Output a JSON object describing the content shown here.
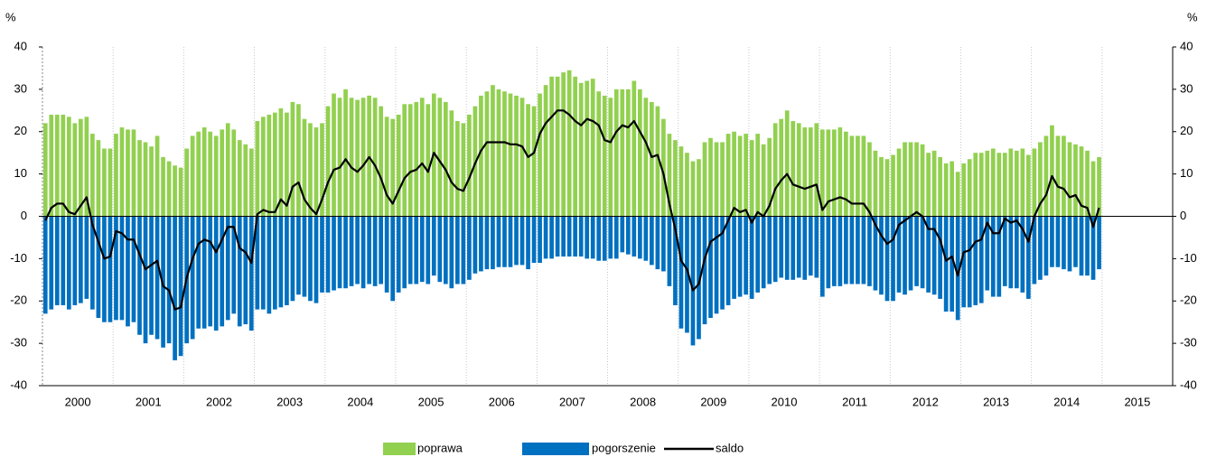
{
  "chart_data": {
    "type": "bar",
    "ylabel": "%",
    "y2label": "%",
    "years": [
      2000,
      2001,
      2002,
      2003,
      2004,
      2005,
      2006,
      2007,
      2008,
      2009,
      2010,
      2011,
      2012,
      2013,
      2014,
      2015
    ],
    "ylim": [
      -40,
      40
    ],
    "yticks": [
      -40,
      -30,
      -20,
      -10,
      0,
      10,
      20,
      30,
      40
    ],
    "y2lim": [
      -40,
      40
    ],
    "y2ticks": [
      -40,
      -30,
      -20,
      -10,
      0,
      10,
      20,
      30,
      40
    ],
    "grid_x": true,
    "series": [
      {
        "name": "poprawa",
        "type": "bar",
        "color": "#92d050",
        "values": [
          22,
          24,
          24,
          24,
          23.5,
          22,
          23,
          23.5,
          19.5,
          18,
          16,
          16,
          19.5,
          21,
          20.5,
          20.5,
          18,
          17.5,
          16.5,
          19,
          14,
          13,
          12,
          11.5,
          16,
          19,
          20,
          21,
          20,
          19,
          20.5,
          22,
          20.5,
          18,
          17,
          16,
          22.5,
          23.5,
          24,
          24.5,
          25.5,
          24.5,
          27,
          26.5,
          23,
          22,
          21,
          22,
          26,
          29,
          28,
          30,
          28,
          27.5,
          28,
          28.5,
          28,
          26,
          23.5,
          23,
          24,
          26.5,
          26.5,
          27,
          28,
          26.5,
          29,
          28,
          27,
          25,
          22.5,
          22,
          24,
          26,
          28.5,
          29.5,
          31,
          30,
          29.5,
          29,
          28.5,
          28,
          26.5,
          26,
          29,
          31,
          33,
          33,
          34,
          34.5,
          33,
          31.5,
          32,
          32.5,
          29.5,
          28.5,
          28,
          30,
          30,
          30,
          32,
          30,
          28,
          27,
          26,
          23,
          19.5,
          18,
          16.5,
          15,
          13,
          13.5,
          17.5,
          18.5,
          17.5,
          17.5,
          19.5,
          20,
          19,
          19.5,
          18,
          19.5,
          17,
          18.5,
          22,
          23,
          25,
          22.5,
          22,
          21,
          21,
          22,
          20.5,
          20.5,
          20.5,
          21,
          20,
          19,
          19,
          19,
          17.5,
          15.5,
          14,
          13.5,
          14.5,
          16,
          17.5,
          17.5,
          17.5,
          17,
          15,
          15.5,
          14,
          12.5,
          13,
          10.5,
          12.5,
          13.5,
          15,
          15,
          15.5,
          16,
          15,
          15,
          16,
          15.5,
          16,
          14.5,
          16,
          17.5,
          19,
          21.5,
          19,
          19,
          17.5,
          17,
          16.5,
          15.5,
          13,
          14
        ]
      },
      {
        "name": "pogorszenie",
        "type": "bar",
        "color": "#0070c0",
        "values": [
          -23,
          -22,
          -21,
          -21,
          -22,
          -21,
          -20.5,
          -19.5,
          -22,
          -24,
          -25,
          -25,
          -24.5,
          -24.5,
          -26,
          -25,
          -28,
          -30,
          -28,
          -29,
          -31,
          -30,
          -34,
          -33,
          -30,
          -29,
          -26.5,
          -26.5,
          -26,
          -27,
          -26,
          -24.5,
          -23,
          -26,
          -25.5,
          -27,
          -22,
          -22,
          -23,
          -22,
          -21.5,
          -21,
          -20,
          -18.5,
          -19,
          -20,
          -20.5,
          -18,
          -18,
          -17.5,
          -17,
          -17,
          -16.5,
          -16,
          -17,
          -16,
          -16.5,
          -16,
          -18,
          -20,
          -18,
          -17,
          -16,
          -16,
          -15.5,
          -16,
          -14,
          -15.5,
          -16,
          -17,
          -16,
          -16,
          -15,
          -13.5,
          -13,
          -12.5,
          -12.5,
          -12,
          -12,
          -12,
          -11.5,
          -11.5,
          -12.5,
          -11,
          -11,
          -10,
          -10,
          -9.5,
          -9.5,
          -9.5,
          -9.5,
          -9.5,
          -10,
          -10,
          -10.5,
          -10.5,
          -10,
          -10,
          -8.5,
          -9,
          -9.5,
          -10,
          -10.5,
          -11.5,
          -12.5,
          -13,
          -16.5,
          -21,
          -26.5,
          -27.5,
          -30.5,
          -29,
          -25.5,
          -24,
          -23,
          -22,
          -21,
          -19.5,
          -19,
          -18.5,
          -19.5,
          -18,
          -17,
          -16,
          -15.5,
          -14.5,
          -15,
          -15,
          -14.5,
          -15,
          -14,
          -14.5,
          -19,
          -17,
          -16.5,
          -16.5,
          -16,
          -16,
          -16,
          -16,
          -16.5,
          -17.5,
          -18.5,
          -20,
          -20,
          -18,
          -18.5,
          -17.5,
          -16.5,
          -17,
          -18,
          -18.5,
          -19.5,
          -22.5,
          -22.5,
          -24.5,
          -21.5,
          -21.5,
          -21,
          -20.5,
          -17.5,
          -19,
          -19,
          -16.5,
          -17,
          -17,
          -18,
          -19.5,
          -16,
          -15,
          -14,
          -12,
          -12,
          -12.5,
          -13,
          -12,
          -14,
          -14,
          -15,
          -12.5
        ]
      },
      {
        "name": "saldo",
        "type": "line",
        "color": "#000000",
        "values": [
          -1,
          2,
          3,
          3,
          1,
          0.5,
          2.5,
          4.5,
          -2,
          -6,
          -10,
          -9.5,
          -3.5,
          -4,
          -5.5,
          -5.5,
          -9,
          -12.5,
          -11.5,
          -10.5,
          -16.5,
          -17.5,
          -22,
          -21.5,
          -14.5,
          -10,
          -6.5,
          -5.5,
          -6,
          -8.5,
          -5.5,
          -2.5,
          -2.5,
          -7.5,
          -8.5,
          -11,
          0.5,
          1.5,
          1,
          1,
          4,
          2.5,
          7,
          8,
          4,
          2,
          0.5,
          4,
          8,
          11,
          11.5,
          13.5,
          11.5,
          10.5,
          12,
          14,
          12,
          9,
          5,
          3,
          6,
          9,
          10.5,
          11,
          12.5,
          10.5,
          15,
          13,
          11,
          8,
          6.5,
          6,
          9,
          12.5,
          15.5,
          17.5,
          17.5,
          17.5,
          17.5,
          17,
          17,
          16.5,
          14,
          15,
          19.5,
          22,
          23.5,
          25,
          25,
          24,
          22.5,
          21.5,
          23,
          22.5,
          21.5,
          18,
          17.5,
          20,
          21.5,
          21,
          22.5,
          20,
          17.5,
          14,
          14.5,
          10,
          3,
          -3,
          -10.5,
          -12.5,
          -17.5,
          -16,
          -10,
          -6,
          -5,
          -4,
          -1,
          2,
          1,
          1.5,
          -1.5,
          1,
          0,
          2.5,
          6.5,
          8.5,
          10,
          7.5,
          7,
          6.5,
          7,
          7.5,
          1.5,
          3.5,
          4,
          4.5,
          4,
          3,
          3,
          3,
          1,
          -2,
          -4.5,
          -6.5,
          -5.5,
          -2,
          -1,
          0,
          1,
          0,
          -3,
          -3,
          -5.5,
          -10.5,
          -9.5,
          -14,
          -8.5,
          -8,
          -6,
          -5.5,
          -1.5,
          -4,
          -4,
          -0.5,
          -1.5,
          -1,
          -3,
          -6,
          0,
          3,
          5,
          9.5,
          7,
          6.5,
          4.5,
          5,
          2.5,
          2,
          -2.5,
          2
        ]
      }
    ]
  }
}
